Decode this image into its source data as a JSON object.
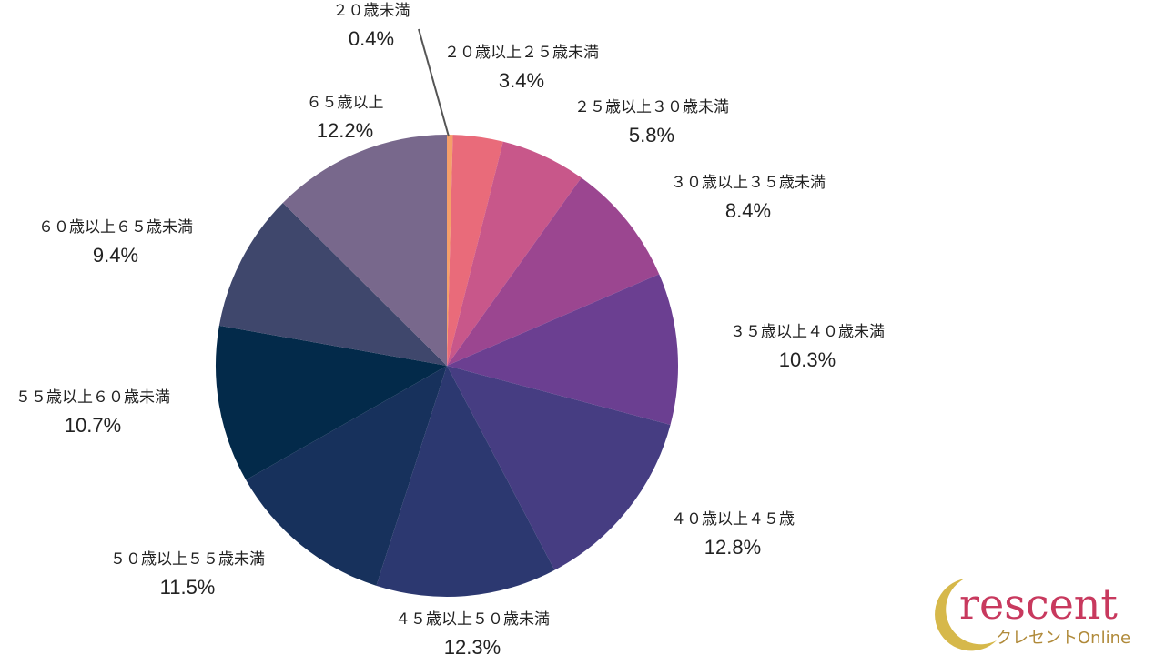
{
  "chart_data": {
    "type": "pie",
    "categories": [
      "２０歳未満",
      "２０歳以上２５歳未満",
      "２５歳以上３０歳未満",
      "３０歳以上３５歳未満",
      "３５歳以上４０歳未満",
      "４０歳以上４５歳",
      "４５歳以上５０歳未満",
      "５０歳以上５５歳未満",
      "５５歳以上６０歳未満",
      "６０歳以上６５歳未満",
      "６５歳以上"
    ],
    "values": [
      0.4,
      3.4,
      5.8,
      8.4,
      10.3,
      12.8,
      12.3,
      11.5,
      10.7,
      9.4,
      12.2
    ],
    "value_labels": [
      "0.4%",
      "3.4%",
      "5.8%",
      "8.4%",
      "10.3%",
      "12.8%",
      "12.3%",
      "11.5%",
      "10.7%",
      "9.4%",
      "12.2%"
    ],
    "colors": [
      "#f4a06a",
      "#e96b7a",
      "#c8578a",
      "#9b4690",
      "#6b3f91",
      "#463d82",
      "#2c3870",
      "#17315c",
      "#032a4a",
      "#3f476c",
      "#78688c"
    ]
  },
  "logo": {
    "text": "rescent",
    "subtitle": "クレセントOnline"
  }
}
